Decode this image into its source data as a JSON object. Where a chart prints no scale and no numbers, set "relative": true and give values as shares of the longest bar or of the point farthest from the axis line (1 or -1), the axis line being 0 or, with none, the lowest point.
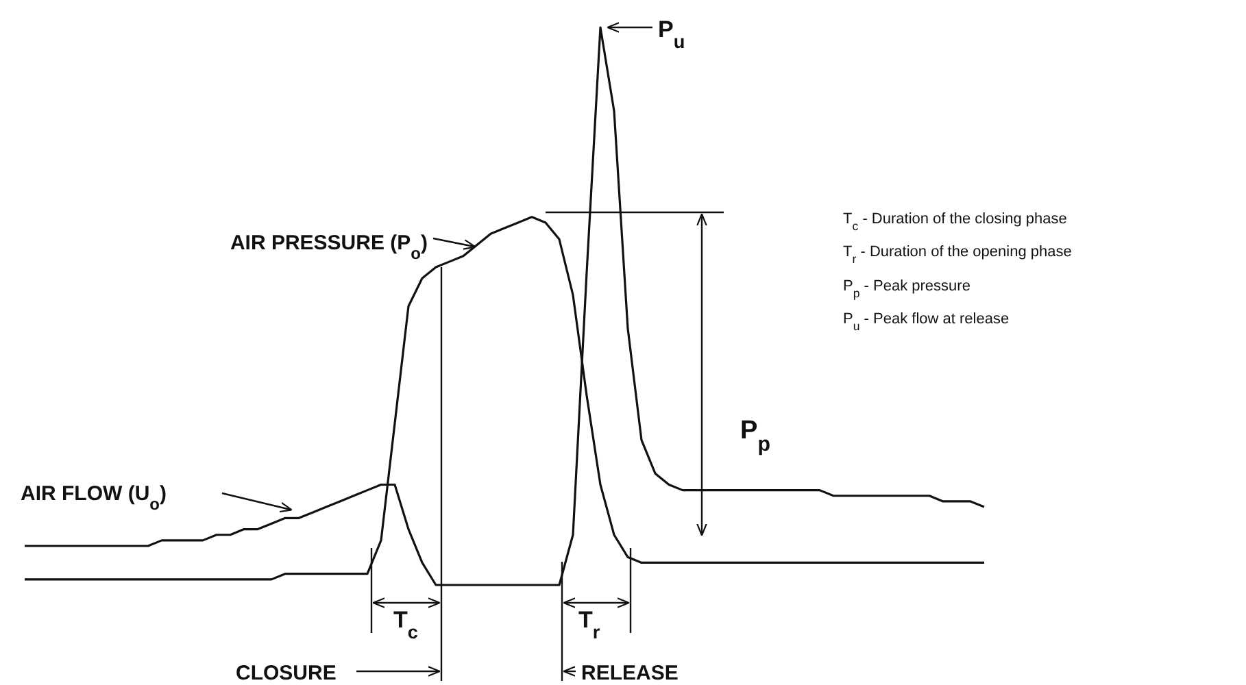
{
  "chart_data": {
    "type": "line",
    "relative": true,
    "tick_labels": false,
    "categories": [
      null,
      null,
      null,
      null,
      null,
      null,
      null,
      null,
      null,
      null,
      null,
      null,
      null,
      null,
      null,
      null,
      null,
      null,
      null,
      null,
      null,
      null,
      null,
      null,
      null,
      null,
      null,
      null,
      null,
      null,
      null,
      null,
      null,
      null,
      null,
      null,
      null,
      null,
      null,
      null,
      null,
      null,
      null,
      null,
      null,
      null,
      null,
      null,
      null,
      null,
      null,
      null,
      null,
      null,
      null,
      null,
      null,
      null,
      null,
      null,
      null,
      null,
      null,
      null,
      null,
      null,
      null,
      null,
      null,
      null,
      null
    ],
    "series": [
      {
        "name": "AIR FLOW (U$_{o}$)",
        "color": "#111111",
        "values": [
          0.07,
          0.07,
          0.07,
          0.07,
          0.07,
          0.07,
          0.07,
          0.07,
          0.07,
          0.07,
          0.08,
          0.08,
          0.08,
          0.08,
          0.09,
          0.09,
          0.1,
          0.1,
          0.11,
          0.12,
          0.12,
          0.13,
          0.14,
          0.15,
          0.16,
          0.17,
          0.18,
          0.18,
          0.1,
          0.04,
          0.0,
          0,
          0,
          0,
          0,
          0,
          0,
          0,
          0,
          0,
          0.09,
          0.56,
          1.0,
          0.85,
          0.46,
          0.26,
          0.2,
          0.18,
          0.17,
          0.17,
          0.17,
          0.17,
          0.17,
          0.17,
          0.17,
          0.17,
          0.17,
          0.17,
          0.17,
          0.16,
          0.16,
          0.16,
          0.16,
          0.16,
          0.16,
          0.16,
          0.16,
          0.15,
          0.15,
          0.15,
          0.14
        ]
      },
      {
        "name": "AIR PRESSURE (P$_{o}$)",
        "color": "#111111",
        "values": [
          0.01,
          0.01,
          0.01,
          0.01,
          0.01,
          0.01,
          0.01,
          0.01,
          0.01,
          0.01,
          0.01,
          0.01,
          0.01,
          0.01,
          0.01,
          0.01,
          0.01,
          0.01,
          0.01,
          0.02,
          0.02,
          0.02,
          0.02,
          0.02,
          0.02,
          0.02,
          0.08,
          0.29,
          0.5,
          0.55,
          0.57,
          0.58,
          0.59,
          0.61,
          0.63,
          0.64,
          0.65,
          0.66,
          0.65,
          0.62,
          0.52,
          0.34,
          0.18,
          0.09,
          0.05,
          0.04,
          0.04,
          0.04,
          0.04,
          0.04,
          0.04,
          0.04,
          0.04,
          0.04,
          0.04,
          0.04,
          0.04,
          0.04,
          0.04,
          0.04,
          0.04,
          0.04,
          0.04,
          0.04,
          0.04,
          0.04,
          0.04,
          0.04,
          0.04,
          0.04,
          0.04
        ]
      }
    ],
    "annotations": [
      "P$_{u}$",
      "P$_{p}$",
      "T$_{c}$",
      "T$_{r}$",
      "CLOSURE",
      "RELEASE",
      "T$_{c}$ -  Duration  of the closing phase",
      "T$_{r}$ -  Duration  of the opening phase",
      "P$_{p}$ -  Peak pressure",
      "P$_{u}$ -  Peak  flow at release"
    ]
  }
}
